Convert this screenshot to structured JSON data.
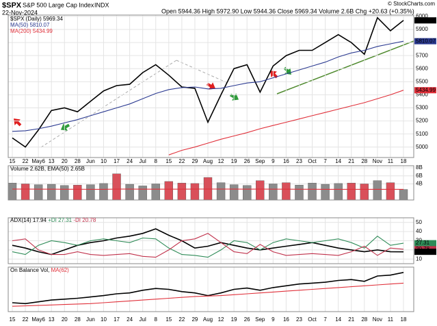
{
  "header": {
    "symbol": "$SPX",
    "name": "S&P 500 Large Cap Index",
    "exchange": "INDX",
    "date": "22-Nov-2024",
    "quote": "Open 5944.36 High 5972.90 Low 5944.36 Close 5969.34 Volume 2.6B Chg +20.63 (+0.35%)",
    "credit": "© StockCharts.com"
  },
  "chart_data": [
    {
      "type": "line",
      "categories": [
        "15",
        "22",
        "May6",
        "13",
        "20",
        "28",
        "Jun",
        "10",
        "17",
        "24",
        "Jul",
        "8",
        "15",
        "22",
        "29",
        "Aug",
        "12",
        "19",
        "26",
        "Sep",
        "9",
        "16",
        "23",
        "Oct",
        "7",
        "14",
        "21",
        "28",
        "Nov",
        "11",
        "18"
      ],
      "ylim": [
        4920,
        6010
      ],
      "yticks": [
        5000,
        5100,
        5200,
        5300,
        5400,
        5500,
        5600,
        5700,
        5800,
        5900,
        6000
      ],
      "grid": true,
      "series": [
        {
          "name": "$SPX (Daily)",
          "color": "#000000",
          "values": [
            5070,
            5000,
            5130,
            5280,
            5300,
            5270,
            5350,
            5430,
            5470,
            5480,
            5570,
            5630,
            5550,
            5460,
            5450,
            5190,
            5400,
            5600,
            5630,
            5420,
            5620,
            5700,
            5740,
            5740,
            5800,
            5860,
            5800,
            5710,
            5990,
            5890,
            5969.34
          ]
        },
        {
          "name": "MA(50)",
          "color": "#2b3a91",
          "values": [
            5120,
            5125,
            5140,
            5160,
            5185,
            5210,
            5240,
            5270,
            5300,
            5330,
            5370,
            5410,
            5440,
            5455,
            5460,
            5445,
            5450,
            5470,
            5490,
            5500,
            5530,
            5560,
            5590,
            5620,
            5650,
            5690,
            5720,
            5740,
            5770,
            5790,
            5810.07
          ]
        },
        {
          "name": "MA(200)",
          "color": "#e0303a",
          "values": [
            null,
            null,
            null,
            null,
            null,
            null,
            null,
            null,
            null,
            null,
            null,
            null,
            4940,
            4975,
            5000,
            5030,
            5060,
            5085,
            5110,
            5140,
            5165,
            5190,
            5215,
            5240,
            5265,
            5290,
            5315,
            5340,
            5370,
            5400,
            5434.99
          ]
        }
      ]
    },
    {
      "type": "bar",
      "ylim": [
        0,
        8.5
      ],
      "yticks": [
        {
          "value": 4,
          "label": "4B"
        },
        {
          "value": 6,
          "label": "6B"
        },
        {
          "value": 8,
          "label": "8B"
        }
      ],
      "grid": true,
      "series": [
        {
          "name": "Volume",
          "last_label": "2.62B",
          "color": "#8c8c8c",
          "colors": [
            "#8c8c8c",
            "#d9505a",
            "#8c8c8c",
            "#8c8c8c",
            "#8c8c8c",
            "#d9505a",
            "#8c8c8c",
            "#8c8c8c",
            "#d9505a",
            "#8c8c8c",
            "#8c8c8c",
            "#8c8c8c",
            "#d9505a",
            "#d9505a",
            "#d9505a",
            "#d9505a",
            "#8c8c8c",
            "#8c8c8c",
            "#8c8c8c",
            "#d9505a",
            "#8c8c8c",
            "#d9505a",
            "#8c8c8c",
            "#8c8c8c",
            "#8c8c8c",
            "#8c8c8c",
            "#d9505a",
            "#d9505a",
            "#8c8c8c",
            "#d9505a",
            "#8c8c8c"
          ],
          "values": [
            4.2,
            4.0,
            3.8,
            3.9,
            3.6,
            3.7,
            3.8,
            4.1,
            6.5,
            3.9,
            3.5,
            4.0,
            4.6,
            4.2,
            4.1,
            5.6,
            4.3,
            3.8,
            3.6,
            4.8,
            4.0,
            4.3,
            3.7,
            4.2,
            3.9,
            4.1,
            4.2,
            4.0,
            4.8,
            4.3,
            2.62
          ]
        },
        {
          "name": "EMA(50)",
          "last_label": "2.65B",
          "color": "#e0303a",
          "values": [
            2.7,
            2.7,
            2.68,
            2.68,
            2.67,
            2.67,
            2.66,
            2.66,
            2.7,
            2.7,
            2.69,
            2.68,
            2.68,
            2.69,
            2.7,
            2.72,
            2.71,
            2.7,
            2.69,
            2.7,
            2.69,
            2.68,
            2.67,
            2.67,
            2.66,
            2.66,
            2.66,
            2.65,
            2.66,
            2.66,
            2.65
          ]
        }
      ]
    },
    {
      "type": "line",
      "ylim": [
        5,
        55
      ],
      "yticks": [
        10,
        20,
        30,
        40,
        50
      ],
      "grid": true,
      "series": [
        {
          "name": "ADX(14)",
          "color": "#000000",
          "values": [
            25,
            22,
            18,
            15,
            20,
            25,
            28,
            30,
            33,
            35,
            38,
            43,
            36,
            30,
            22,
            24,
            28,
            25,
            22,
            20,
            22,
            24,
            26,
            28,
            25,
            22,
            20,
            18,
            20,
            18,
            17.94
          ]
        },
        {
          "name": "+DI",
          "color": "#2e8b57",
          "values": [
            18,
            15,
            25,
            30,
            28,
            25,
            30,
            32,
            30,
            28,
            33,
            32,
            22,
            15,
            14,
            12,
            20,
            30,
            28,
            20,
            28,
            32,
            30,
            28,
            30,
            32,
            28,
            22,
            35,
            25,
            27.31
          ]
        },
        {
          "name": "-DI",
          "color": "#c0304a",
          "values": [
            30,
            32,
            20,
            15,
            15,
            18,
            15,
            14,
            15,
            16,
            13,
            12,
            20,
            30,
            32,
            38,
            28,
            18,
            16,
            26,
            18,
            14,
            15,
            16,
            15,
            14,
            18,
            24,
            14,
            22,
            20.78
          ]
        }
      ]
    },
    {
      "type": "line",
      "ylim": [
        0,
        100
      ],
      "grid": false,
      "series": [
        {
          "name": "On Balance Vol",
          "color": "#000000",
          "values": [
            20,
            18,
            22,
            26,
            28,
            30,
            33,
            36,
            40,
            42,
            48,
            52,
            50,
            45,
            42,
            36,
            42,
            50,
            53,
            48,
            54,
            58,
            62,
            64,
            66,
            70,
            72,
            68,
            80,
            82,
            88
          ]
        },
        {
          "name": "MA(62)",
          "color": "#e0303a",
          "values": [
            12,
            13,
            14,
            15,
            16,
            17,
            18,
            20,
            22,
            24,
            26,
            28,
            30,
            32,
            34,
            35,
            36,
            38,
            40,
            42,
            44,
            46,
            48,
            50,
            52,
            54,
            56,
            58,
            60,
            62,
            64
          ]
        }
      ]
    }
  ]
}
